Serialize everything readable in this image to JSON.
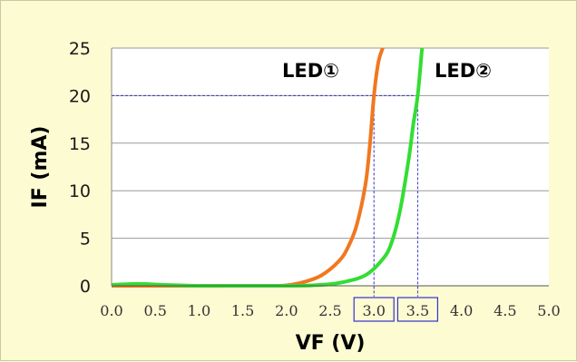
{
  "chart_data": {
    "type": "line",
    "title": "",
    "xlabel": "VF (V)",
    "ylabel": "IF (mA)",
    "xlim": [
      0,
      5
    ],
    "ylim": [
      0,
      25
    ],
    "x_ticks": [
      "0.0",
      "0.5",
      "1.0",
      "1.5",
      "2.0",
      "2.5",
      "3.0",
      "3.5",
      "4.0",
      "4.5",
      "5.0"
    ],
    "y_ticks": [
      "0",
      "5",
      "10",
      "15",
      "20",
      "25"
    ],
    "grid": "horizontal",
    "series": [
      {
        "name": "LED①",
        "color": "#f07820",
        "x": [
          0.0,
          0.5,
          1.0,
          1.5,
          1.8,
          2.0,
          2.2,
          2.4,
          2.6,
          2.7,
          2.8,
          2.9,
          2.95,
          3.0,
          3.05,
          3.1
        ],
        "y": [
          0,
          0,
          0,
          0,
          0,
          0.05,
          0.4,
          1.1,
          2.6,
          4.0,
          6.3,
          10.5,
          14.5,
          20.0,
          23.5,
          25.0
        ]
      },
      {
        "name": "LED②",
        "color": "#33dd33",
        "x": [
          0.0,
          0.3,
          0.6,
          1.0,
          1.5,
          2.0,
          2.3,
          2.6,
          2.9,
          3.1,
          3.2,
          3.3,
          3.4,
          3.45,
          3.5,
          3.55
        ],
        "y": [
          0.1,
          0.2,
          0.1,
          0,
          0,
          0,
          0.05,
          0.3,
          1.1,
          2.8,
          4.5,
          8.0,
          13.5,
          17.0,
          20.0,
          25.0
        ]
      }
    ],
    "reference": {
      "y": 20,
      "x_values": [
        3.0,
        3.5
      ],
      "highlighted_ticks": [
        "3.0",
        "3.5"
      ],
      "line_color": "#3333cc"
    }
  }
}
